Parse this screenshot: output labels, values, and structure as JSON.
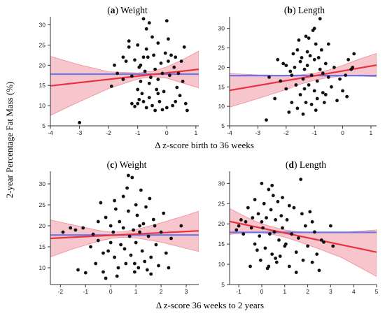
{
  "figure": {
    "ylabel": "2-year Percentage Fat Mass (%)",
    "xlabel_top": "Δ z-score birth to 36 weeks",
    "xlabel_bottom": "Δ z-score 36 weeks to 2 years"
  },
  "colors": {
    "points": "#111111",
    "mean_line": "#6b74e8",
    "fit_line": "#e8323f",
    "ci_fill": "#f7c6cc",
    "ci_edge": "#f08a96"
  },
  "chart_data": [
    {
      "type": "scatter",
      "panel_letter": "a",
      "panel_name": " Weight",
      "xlim": [
        -4,
        1.1
      ],
      "ylim": [
        5,
        32
      ],
      "xticks": [
        -4,
        -3,
        -2,
        -1,
        0,
        1
      ],
      "yticks": [
        5,
        10,
        15,
        20,
        25,
        30
      ],
      "mean_y": 17.8,
      "fit": {
        "x": [
          -4,
          1.1
        ],
        "y": [
          14.9,
          19.0
        ]
      },
      "ci": {
        "x": [
          -4,
          -3,
          -2,
          -1,
          -0.5,
          0,
          0.5,
          1.1
        ],
        "lower": [
          7.6,
          11.0,
          14.2,
          16.6,
          17.2,
          16.8,
          15.7,
          14.4
        ],
        "upper": [
          22.2,
          20.1,
          18.4,
          18.1,
          18.5,
          19.6,
          21.2,
          23.5
        ]
      },
      "points": [
        [
          -3.0,
          5.8
        ],
        [
          -1.9,
          14.8
        ],
        [
          -1.7,
          18.0
        ],
        [
          -1.5,
          22.0
        ],
        [
          -1.5,
          16.5
        ],
        [
          -1.4,
          21.0
        ],
        [
          -1.3,
          26.0
        ],
        [
          -1.3,
          24.5
        ],
        [
          -1.2,
          17.3
        ],
        [
          -1.2,
          10.5
        ],
        [
          -1.1,
          9.8
        ],
        [
          -1.1,
          21.3
        ],
        [
          -1.0,
          10.5
        ],
        [
          -1.0,
          25.0
        ],
        [
          -0.95,
          19.5
        ],
        [
          -0.9,
          20.0
        ],
        [
          -0.9,
          16.0
        ],
        [
          -0.85,
          13.0
        ],
        [
          -0.8,
          31.5
        ],
        [
          -0.8,
          11.0
        ],
        [
          -0.75,
          18.5
        ],
        [
          -0.7,
          29.0
        ],
        [
          -0.7,
          9.5
        ],
        [
          -0.65,
          22.0
        ],
        [
          -0.6,
          30.5
        ],
        [
          -0.6,
          12.0
        ],
        [
          -0.55,
          17.0
        ],
        [
          -0.5,
          27.0
        ],
        [
          -0.5,
          10.0
        ],
        [
          -0.45,
          22.5
        ],
        [
          -0.4,
          19.0
        ],
        [
          -0.4,
          8.8
        ],
        [
          -0.35,
          14.0
        ],
        [
          -0.3,
          25.5
        ],
        [
          -0.3,
          16.5
        ],
        [
          -0.25,
          11.0
        ],
        [
          -0.2,
          20.5
        ],
        [
          -0.15,
          18.0
        ],
        [
          -0.1,
          13.5
        ],
        [
          -0.05,
          23.0
        ],
        [
          0.0,
          31.0
        ],
        [
          0.0,
          9.5
        ],
        [
          0.05,
          21.0
        ],
        [
          0.1,
          17.5
        ],
        [
          0.15,
          22.5
        ],
        [
          0.2,
          10.0
        ],
        [
          0.25,
          19.5
        ],
        [
          0.3,
          22.0
        ],
        [
          0.35,
          14.5
        ],
        [
          0.4,
          18.0
        ],
        [
          0.45,
          12.5
        ],
        [
          0.5,
          21.0
        ],
        [
          0.55,
          16.0
        ],
        [
          0.6,
          24.5
        ],
        [
          0.65,
          10.5
        ],
        [
          0.7,
          8.8
        ],
        [
          -1.8,
          20.0
        ],
        [
          -1.0,
          14.0
        ],
        [
          -0.6,
          15.5
        ],
        [
          -0.3,
          13.0
        ],
        [
          -0.8,
          22.0
        ],
        [
          0.05,
          26.5
        ],
        [
          -0.95,
          11.5
        ],
        [
          -0.15,
          9.0
        ],
        [
          -0.7,
          24.0
        ],
        [
          0.3,
          11.0
        ]
      ]
    },
    {
      "type": "scatter",
      "panel_letter": "b",
      "panel_name": " Length",
      "xlim": [
        -4,
        1.2
      ],
      "ylim": [
        5,
        33
      ],
      "xticks": [
        -4,
        -3,
        -2,
        -1,
        0,
        1
      ],
      "yticks": [
        5,
        10,
        15,
        20,
        25,
        30
      ],
      "mean_y": 17.9,
      "fit": {
        "x": [
          -4,
          1.2
        ],
        "y": [
          14.1,
          20.6
        ]
      },
      "ci": {
        "x": [
          -4,
          -3,
          -2,
          -1.5,
          -1,
          -0.5,
          0,
          0.5,
          1.2
        ],
        "lower": [
          9.8,
          12.0,
          14.3,
          15.7,
          16.7,
          17.4,
          17.8,
          17.8,
          17.6
        ],
        "upper": [
          18.4,
          18.1,
          18.0,
          18.1,
          18.5,
          19.3,
          20.5,
          21.9,
          23.6
        ]
      },
      "points": [
        [
          -2.7,
          6.5
        ],
        [
          -2.6,
          17.5
        ],
        [
          -2.3,
          22.0
        ],
        [
          -2.2,
          16.5
        ],
        [
          -2.1,
          21.0
        ],
        [
          -2.0,
          14.5
        ],
        [
          -2.0,
          20.5
        ],
        [
          -1.9,
          8.5
        ],
        [
          -1.8,
          18.0
        ],
        [
          -1.8,
          11.0
        ],
        [
          -1.7,
          20.0
        ],
        [
          -1.6,
          24.5
        ],
        [
          -1.6,
          9.5
        ],
        [
          -1.5,
          21.5
        ],
        [
          -1.5,
          13.0
        ],
        [
          -1.45,
          22.5
        ],
        [
          -1.4,
          17.0
        ],
        [
          -1.4,
          8.0
        ],
        [
          -1.35,
          19.5
        ],
        [
          -1.3,
          28.0
        ],
        [
          -1.3,
          11.0
        ],
        [
          -1.25,
          24.0
        ],
        [
          -1.2,
          15.5
        ],
        [
          -1.2,
          27.5
        ],
        [
          -1.15,
          23.0
        ],
        [
          -1.1,
          18.0
        ],
        [
          -1.1,
          10.5
        ],
        [
          -1.05,
          29.5
        ],
        [
          -1.0,
          22.0
        ],
        [
          -1.0,
          14.0
        ],
        [
          -0.95,
          26.0
        ],
        [
          -0.9,
          16.5
        ],
        [
          -0.9,
          12.0
        ],
        [
          -0.85,
          22.5
        ],
        [
          -0.8,
          19.5
        ],
        [
          -0.8,
          32.5
        ],
        [
          -0.75,
          24.5
        ],
        [
          -0.7,
          18.5
        ],
        [
          -0.7,
          13.5
        ],
        [
          -0.6,
          21.0
        ],
        [
          -0.5,
          26.0
        ],
        [
          -0.4,
          15.0
        ],
        [
          -0.3,
          20.0
        ],
        [
          -0.2,
          11.5
        ],
        [
          -0.1,
          17.0
        ],
        [
          0.0,
          14.0
        ],
        [
          0.1,
          18.0
        ],
        [
          0.2,
          22.0
        ],
        [
          0.3,
          19.5
        ],
        [
          0.4,
          23.5
        ],
        [
          -1.55,
          27.0
        ],
        [
          -1.65,
          15.5
        ],
        [
          -1.25,
          20.5
        ],
        [
          -0.95,
          9.0
        ],
        [
          -2.4,
          12.0
        ],
        [
          -1.75,
          23.5
        ],
        [
          -0.6,
          13.0
        ],
        [
          -1.35,
          14.5
        ],
        [
          0.15,
          12.5
        ],
        [
          -0.5,
          17.5
        ],
        [
          0.35,
          20.0
        ],
        [
          -1.0,
          30.0
        ],
        [
          -0.65,
          11.0
        ],
        [
          -1.85,
          19.0
        ]
      ]
    },
    {
      "type": "scatter",
      "panel_letter": "c",
      "panel_name": " Weight",
      "xlim": [
        -2.4,
        3.5
      ],
      "ylim": [
        6,
        33
      ],
      "xticks": [
        -2,
        -1,
        0,
        1,
        2,
        3
      ],
      "yticks": [
        10,
        15,
        20,
        25,
        30
      ],
      "mean_y": 17.8,
      "fit": {
        "x": [
          -2.4,
          3.5
        ],
        "y": [
          17.0,
          18.8
        ]
      },
      "ci": {
        "x": [
          -2.4,
          -1.5,
          -0.5,
          0,
          0.5,
          1,
          2,
          3,
          3.5
        ],
        "lower": [
          12.6,
          14.5,
          16.3,
          17.0,
          17.3,
          17.1,
          16.1,
          14.6,
          13.9
        ],
        "upper": [
          21.4,
          20.2,
          18.9,
          18.5,
          18.6,
          19.1,
          20.7,
          22.5,
          23.5
        ]
      },
      "points": [
        [
          -1.9,
          18.5
        ],
        [
          -1.6,
          19.5
        ],
        [
          -1.4,
          19.0
        ],
        [
          -1.3,
          9.5
        ],
        [
          -1.1,
          19.5
        ],
        [
          -1.0,
          8.8
        ],
        [
          -0.8,
          15.0
        ],
        [
          -0.6,
          11.0
        ],
        [
          -0.5,
          16.5
        ],
        [
          -0.5,
          21.0
        ],
        [
          -0.4,
          25.5
        ],
        [
          -0.3,
          9.0
        ],
        [
          -0.2,
          22.0
        ],
        [
          -0.2,
          7.5
        ],
        [
          -0.1,
          14.0
        ],
        [
          0.0,
          16.0
        ],
        [
          0.0,
          20.0
        ],
        [
          0.1,
          18.5
        ],
        [
          0.15,
          12.5
        ],
        [
          0.2,
          24.0
        ],
        [
          0.3,
          10.0
        ],
        [
          0.35,
          21.0
        ],
        [
          0.4,
          15.5
        ],
        [
          0.5,
          27.0
        ],
        [
          0.5,
          19.5
        ],
        [
          0.6,
          11.0
        ],
        [
          0.65,
          29.0
        ],
        [
          0.7,
          23.5
        ],
        [
          0.75,
          17.5
        ],
        [
          0.8,
          13.0
        ],
        [
          0.85,
          31.5
        ],
        [
          0.9,
          19.0
        ],
        [
          0.95,
          11.0
        ],
        [
          1.0,
          25.0
        ],
        [
          1.0,
          16.0
        ],
        [
          1.05,
          22.5
        ],
        [
          1.1,
          10.0
        ],
        [
          1.15,
          18.5
        ],
        [
          1.2,
          28.5
        ],
        [
          1.25,
          14.0
        ],
        [
          1.3,
          20.5
        ],
        [
          1.35,
          11.5
        ],
        [
          1.4,
          24.5
        ],
        [
          1.5,
          17.5
        ],
        [
          1.55,
          26.5
        ],
        [
          1.6,
          12.5
        ],
        [
          1.7,
          21.5
        ],
        [
          1.8,
          15.5
        ],
        [
          1.9,
          10.5
        ],
        [
          2.0,
          18.5
        ],
        [
          2.1,
          23.0
        ],
        [
          2.2,
          13.5
        ],
        [
          2.3,
          10.0
        ],
        [
          2.4,
          17.0
        ],
        [
          0.7,
          32.0
        ],
        [
          -0.3,
          13.5
        ],
        [
          0.25,
          8.0
        ],
        [
          1.45,
          9.5
        ],
        [
          0.55,
          14.5
        ],
        [
          1.15,
          20.0
        ],
        [
          -0.7,
          18.0
        ],
        [
          0.95,
          9.0
        ],
        [
          1.75,
          20.0
        ],
        [
          0.15,
          26.0
        ],
        [
          2.8,
          20.0
        ],
        [
          1.6,
          8.5
        ]
      ]
    },
    {
      "type": "scatter",
      "panel_letter": "d",
      "panel_name": " Length",
      "xlim": [
        -1.4,
        5
      ],
      "ylim": [
        5,
        33
      ],
      "xticks": [
        -1,
        0,
        1,
        2,
        3,
        4,
        5
      ],
      "yticks": [
        5,
        10,
        15,
        20,
        25,
        30
      ],
      "mean_y": 17.9,
      "fit": {
        "x": [
          -1.4,
          5
        ],
        "y": [
          20.6,
          13.0
        ]
      },
      "ci": {
        "x": [
          -1.4,
          -0.5,
          0,
          0.5,
          1,
          1.5,
          2.5,
          3.5,
          5
        ],
        "lower": [
          17.4,
          17.9,
          17.8,
          17.4,
          16.7,
          15.8,
          13.8,
          11.6,
          7.0
        ],
        "upper": [
          23.8,
          21.2,
          20.0,
          19.2,
          18.5,
          18.1,
          17.8,
          17.9,
          18.5
        ]
      },
      "points": [
        [
          -1.1,
          18.5
        ],
        [
          -1.0,
          19.5
        ],
        [
          -0.9,
          21.0
        ],
        [
          -0.7,
          20.5
        ],
        [
          -0.6,
          24.0
        ],
        [
          -0.5,
          9.5
        ],
        [
          -0.45,
          19.0
        ],
        [
          -0.4,
          21.5
        ],
        [
          -0.3,
          26.0
        ],
        [
          -0.3,
          15.0
        ],
        [
          -0.2,
          13.5
        ],
        [
          -0.15,
          22.5
        ],
        [
          -0.1,
          17.0
        ],
        [
          -0.05,
          11.0
        ],
        [
          0.0,
          30.0
        ],
        [
          0.05,
          19.0
        ],
        [
          0.1,
          25.0
        ],
        [
          0.15,
          14.0
        ],
        [
          0.2,
          21.5
        ],
        [
          0.25,
          9.0
        ],
        [
          0.3,
          28.5
        ],
        [
          0.35,
          17.5
        ],
        [
          0.4,
          23.5
        ],
        [
          0.45,
          12.5
        ],
        [
          0.5,
          27.0
        ],
        [
          0.55,
          18.0
        ],
        [
          0.6,
          21.0
        ],
        [
          0.65,
          10.5
        ],
        [
          0.7,
          25.5
        ],
        [
          0.75,
          16.0
        ],
        [
          0.8,
          12.0
        ],
        [
          0.85,
          22.0
        ],
        [
          0.9,
          19.0
        ],
        [
          1.0,
          14.5
        ],
        [
          1.1,
          21.0
        ],
        [
          1.2,
          9.5
        ],
        [
          1.3,
          17.5
        ],
        [
          1.4,
          24.0
        ],
        [
          1.5,
          13.0
        ],
        [
          1.6,
          16.5
        ],
        [
          1.7,
          31.0
        ],
        [
          1.8,
          11.0
        ],
        [
          1.9,
          19.5
        ],
        [
          2.0,
          14.5
        ],
        [
          2.1,
          23.0
        ],
        [
          2.2,
          10.5
        ],
        [
          2.3,
          18.0
        ],
        [
          2.4,
          12.5
        ],
        [
          2.5,
          8.5
        ],
        [
          2.6,
          16.0
        ],
        [
          2.7,
          15.5
        ],
        [
          3.0,
          19.5
        ],
        [
          3.1,
          14.5
        ],
        [
          0.3,
          9.5
        ],
        [
          0.9,
          26.5
        ],
        [
          1.5,
          8.0
        ],
        [
          -0.8,
          17.5
        ],
        [
          0.6,
          11.5
        ],
        [
          1.2,
          24.5
        ],
        [
          2.2,
          20.5
        ],
        [
          0.0,
          20.5
        ],
        [
          1.05,
          15.0
        ],
        [
          1.75,
          22.5
        ],
        [
          0.45,
          29.5
        ]
      ]
    }
  ]
}
